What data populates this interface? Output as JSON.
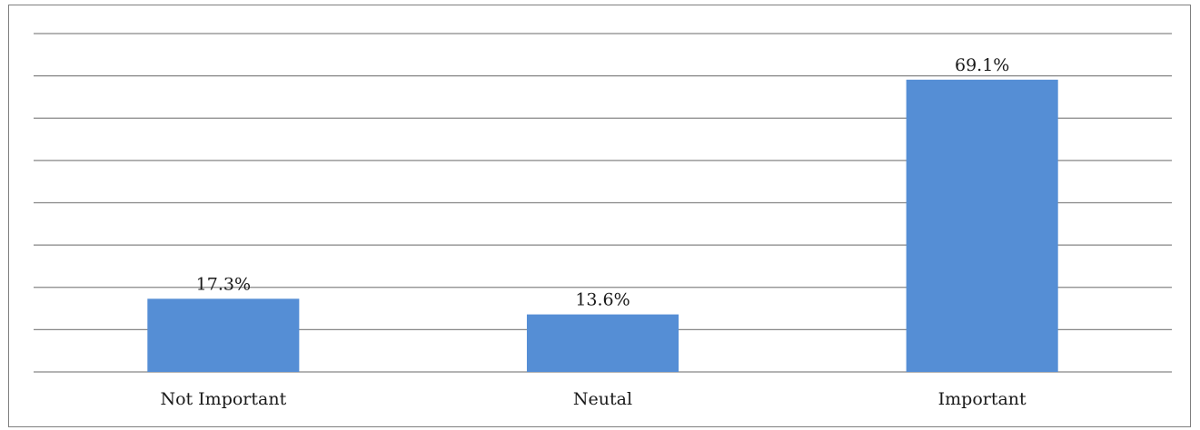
{
  "chart_data": {
    "type": "bar",
    "categories": [
      "Not Important",
      "Neutal",
      "Important"
    ],
    "values": [
      17.3,
      13.6,
      69.1
    ],
    "value_labels": [
      "17.3%",
      "13.6%",
      "69.1%"
    ],
    "title": "",
    "xlabel": "",
    "ylabel": "",
    "ylim": [
      0,
      80
    ],
    "grid": true,
    "gridline_count": 8,
    "legend": "none",
    "bar_color": "#558ED5"
  }
}
